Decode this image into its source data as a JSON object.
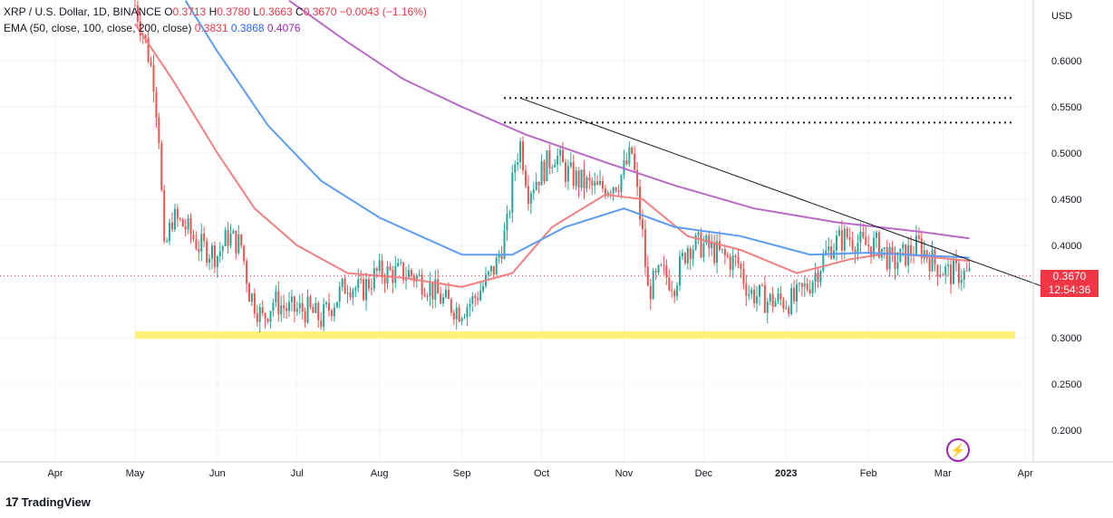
{
  "header": {
    "symbol": "XRP / U.S. Dollar, 1D, BINANCE",
    "o_label": "O",
    "o": "0.3713",
    "h_label": "H",
    "h": "0.3780",
    "l_label": "L",
    "l": "0.3663",
    "c_label": "C",
    "c": "0.3670",
    "change": "−0.0043 (−1.16%)",
    "ema_label": "EMA (50, close, 100, close, 200, close)",
    "ema50": "0.3831",
    "ema100": "0.3868",
    "ema200": "0.4076"
  },
  "price_tag": {
    "price": "0.3670",
    "countdown": "12:54:36"
  },
  "currency": "USD",
  "watermark": "TradingView",
  "colors": {
    "up": "#26a69a",
    "down": "#ef5350",
    "ema50": "#f47f7f",
    "ema100": "#5b9cf6",
    "ema200": "#ba68c8",
    "support": "#fff176"
  },
  "chart_data": {
    "type": "candlestick",
    "y_range": [
      0.15,
      0.665
    ],
    "y_ticks": [
      "0.6000",
      "0.5500",
      "0.5000",
      "0.4500",
      "0.4000",
      "0.3000",
      "0.2500",
      "0.2000"
    ],
    "x_labels": [
      "Apr",
      "May",
      "Jun",
      "Jul",
      "Aug",
      "Sep",
      "Oct",
      "Nov",
      "Dec",
      "2023",
      "Feb",
      "Mar",
      "Apr"
    ],
    "close_series": [
      {
        "date": "2022-05-01",
        "value": 0.66
      },
      {
        "date": "2022-05-05",
        "value": 0.62
      },
      {
        "date": "2022-05-08",
        "value": 0.58
      },
      {
        "date": "2022-05-10",
        "value": 0.52
      },
      {
        "date": "2022-05-12",
        "value": 0.39
      },
      {
        "date": "2022-05-15",
        "value": 0.43
      },
      {
        "date": "2022-05-20",
        "value": 0.42
      },
      {
        "date": "2022-05-25",
        "value": 0.4
      },
      {
        "date": "2022-06-01",
        "value": 0.39
      },
      {
        "date": "2022-06-05",
        "value": 0.41
      },
      {
        "date": "2022-06-10",
        "value": 0.4
      },
      {
        "date": "2022-06-13",
        "value": 0.35
      },
      {
        "date": "2022-06-18",
        "value": 0.32
      },
      {
        "date": "2022-06-22",
        "value": 0.34
      },
      {
        "date": "2022-06-28",
        "value": 0.33
      },
      {
        "date": "2022-07-05",
        "value": 0.33
      },
      {
        "date": "2022-07-10",
        "value": 0.32
      },
      {
        "date": "2022-07-15",
        "value": 0.34
      },
      {
        "date": "2022-07-20",
        "value": 0.36
      },
      {
        "date": "2022-07-25",
        "value": 0.35
      },
      {
        "date": "2022-07-31",
        "value": 0.37
      },
      {
        "date": "2022-08-06",
        "value": 0.37
      },
      {
        "date": "2022-08-12",
        "value": 0.37
      },
      {
        "date": "2022-08-18",
        "value": 0.36
      },
      {
        "date": "2022-08-25",
        "value": 0.34
      },
      {
        "date": "2022-08-31",
        "value": 0.33
      },
      {
        "date": "2022-09-05",
        "value": 0.34
      },
      {
        "date": "2022-09-10",
        "value": 0.36
      },
      {
        "date": "2022-09-14",
        "value": 0.38
      },
      {
        "date": "2022-09-18",
        "value": 0.42
      },
      {
        "date": "2022-09-21",
        "value": 0.49
      },
      {
        "date": "2022-09-23",
        "value": 0.51
      },
      {
        "date": "2022-09-26",
        "value": 0.46
      },
      {
        "date": "2022-10-01",
        "value": 0.48
      },
      {
        "date": "2022-10-06",
        "value": 0.5
      },
      {
        "date": "2022-10-10",
        "value": 0.48
      },
      {
        "date": "2022-10-15",
        "value": 0.47
      },
      {
        "date": "2022-10-22",
        "value": 0.46
      },
      {
        "date": "2022-10-30",
        "value": 0.47
      },
      {
        "date": "2022-11-04",
        "value": 0.5
      },
      {
        "date": "2022-11-08",
        "value": 0.41
      },
      {
        "date": "2022-11-10",
        "value": 0.35
      },
      {
        "date": "2022-11-15",
        "value": 0.37
      },
      {
        "date": "2022-11-20",
        "value": 0.36
      },
      {
        "date": "2022-11-25",
        "value": 0.4
      },
      {
        "date": "2022-12-01",
        "value": 0.4
      },
      {
        "date": "2022-12-07",
        "value": 0.39
      },
      {
        "date": "2022-12-14",
        "value": 0.38
      },
      {
        "date": "2022-12-18",
        "value": 0.35
      },
      {
        "date": "2022-12-25",
        "value": 0.34
      },
      {
        "date": "2022-12-30",
        "value": 0.34
      },
      {
        "date": "2023-01-04",
        "value": 0.34
      },
      {
        "date": "2023-01-10",
        "value": 0.36
      },
      {
        "date": "2023-01-14",
        "value": 0.38
      },
      {
        "date": "2023-01-18",
        "value": 0.4
      },
      {
        "date": "2023-01-24",
        "value": 0.41
      },
      {
        "date": "2023-01-30",
        "value": 0.4
      },
      {
        "date": "2023-02-05",
        "value": 0.4
      },
      {
        "date": "2023-02-10",
        "value": 0.38
      },
      {
        "date": "2023-02-15",
        "value": 0.39
      },
      {
        "date": "2023-02-20",
        "value": 0.4
      },
      {
        "date": "2023-02-26",
        "value": 0.38
      },
      {
        "date": "2023-03-03",
        "value": 0.37
      },
      {
        "date": "2023-03-08",
        "value": 0.37
      },
      {
        "date": "2023-03-11",
        "value": 0.367
      }
    ],
    "ema_series": [
      {
        "name": "EMA 50",
        "values": [
          {
            "date": "2022-05-01",
            "value": 0.64
          },
          {
            "date": "2022-05-15",
            "value": 0.58
          },
          {
            "date": "2022-06-01",
            "value": 0.5
          },
          {
            "date": "2022-06-15",
            "value": 0.44
          },
          {
            "date": "2022-07-01",
            "value": 0.4
          },
          {
            "date": "2022-07-20",
            "value": 0.37
          },
          {
            "date": "2022-08-10",
            "value": 0.365
          },
          {
            "date": "2022-09-01",
            "value": 0.355
          },
          {
            "date": "2022-09-20",
            "value": 0.37
          },
          {
            "date": "2022-10-05",
            "value": 0.42
          },
          {
            "date": "2022-10-25",
            "value": 0.455
          },
          {
            "date": "2022-11-08",
            "value": 0.45
          },
          {
            "date": "2022-11-25",
            "value": 0.41
          },
          {
            "date": "2022-12-15",
            "value": 0.395
          },
          {
            "date": "2023-01-05",
            "value": 0.37
          },
          {
            "date": "2023-01-25",
            "value": 0.385
          },
          {
            "date": "2023-02-10",
            "value": 0.392
          },
          {
            "date": "2023-03-11",
            "value": 0.3831
          }
        ]
      },
      {
        "name": "EMA 100",
        "values": [
          {
            "date": "2022-05-20",
            "value": 0.665
          },
          {
            "date": "2022-06-01",
            "value": 0.61
          },
          {
            "date": "2022-06-20",
            "value": 0.53
          },
          {
            "date": "2022-07-10",
            "value": 0.47
          },
          {
            "date": "2022-08-01",
            "value": 0.43
          },
          {
            "date": "2022-09-01",
            "value": 0.39
          },
          {
            "date": "2022-09-20",
            "value": 0.39
          },
          {
            "date": "2022-10-10",
            "value": 0.42
          },
          {
            "date": "2022-11-01",
            "value": 0.44
          },
          {
            "date": "2022-11-20",
            "value": 0.42
          },
          {
            "date": "2022-12-15",
            "value": 0.41
          },
          {
            "date": "2023-01-10",
            "value": 0.39
          },
          {
            "date": "2023-02-01",
            "value": 0.392
          },
          {
            "date": "2023-03-11",
            "value": 0.3868
          }
        ]
      },
      {
        "name": "EMA 200",
        "values": [
          {
            "date": "2022-06-28",
            "value": 0.665
          },
          {
            "date": "2022-07-20",
            "value": 0.62
          },
          {
            "date": "2022-08-10",
            "value": 0.58
          },
          {
            "date": "2022-09-01",
            "value": 0.55
          },
          {
            "date": "2022-09-25",
            "value": 0.52
          },
          {
            "date": "2022-10-25",
            "value": 0.49
          },
          {
            "date": "2022-11-20",
            "value": 0.465
          },
          {
            "date": "2022-12-20",
            "value": 0.44
          },
          {
            "date": "2023-01-20",
            "value": 0.425
          },
          {
            "date": "2023-02-20",
            "value": 0.415
          },
          {
            "date": "2023-03-11",
            "value": 0.4076
          }
        ]
      }
    ],
    "annotations": {
      "resistance_levels": [
        0.5595,
        0.533
      ],
      "trendline": {
        "start": {
          "date": "2022-09-23",
          "value": 0.5595
        },
        "end": {
          "date": "2023-04-15",
          "value": 0.355
        }
      },
      "support_band": [
        0.299,
        0.307
      ]
    }
  }
}
